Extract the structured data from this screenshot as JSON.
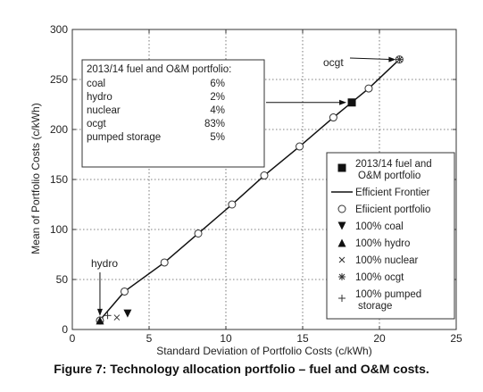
{
  "caption": "Figure 7: Technology allocation portfolio – fuel and O&M costs.",
  "chart_data": {
    "type": "scatter",
    "title": "",
    "xlabel": "Standard Deviation of Portfolio Costs (c/kWh)",
    "ylabel": "Mean of Portfolio Costs (c/kWh)",
    "xlim": [
      0,
      25
    ],
    "ylim": [
      0,
      300
    ],
    "xticks": [
      0,
      5,
      10,
      15,
      20,
      25
    ],
    "yticks": [
      0,
      50,
      100,
      150,
      200,
      250,
      300
    ],
    "grid": true,
    "legend_position": "bottom-right",
    "series": [
      {
        "name": "2013/14 fuel and O&M portfolio",
        "marker": "square",
        "x": [
          18.2
        ],
        "y": [
          227
        ]
      },
      {
        "name": "Efficient Frontier",
        "marker": "line",
        "x": [
          1.8,
          2.0,
          3.4,
          6.0,
          8.2,
          10.4,
          12.5,
          14.8,
          17.0,
          19.3,
          21.3
        ],
        "y": [
          9,
          13,
          38,
          67,
          96,
          125,
          154,
          183,
          212,
          241,
          270
        ]
      },
      {
        "name": "Efiicient portfolio",
        "marker": "circle-open",
        "x": [
          1.8,
          3.4,
          6.0,
          8.2,
          10.4,
          12.5,
          14.8,
          17.0,
          19.3,
          21.3
        ],
        "y": [
          9,
          38,
          67,
          96,
          125,
          154,
          183,
          212,
          241,
          270
        ]
      },
      {
        "name": "100% coal",
        "marker": "triangle-down",
        "x": [
          3.6
        ],
        "y": [
          16
        ]
      },
      {
        "name": "100% hydro",
        "marker": "triangle-up",
        "x": [
          1.8
        ],
        "y": [
          9
        ]
      },
      {
        "name": "100% nuclear",
        "marker": "x",
        "x": [
          2.9
        ],
        "y": [
          12
        ]
      },
      {
        "name": "100% ocgt",
        "marker": "star",
        "x": [
          21.3
        ],
        "y": [
          270
        ]
      },
      {
        "name": "100% pumped storage",
        "marker": "plus",
        "x": [
          2.3
        ],
        "y": [
          14
        ]
      }
    ],
    "legend": [
      {
        "line1": "2013/14 fuel and",
        "line2": "O&M portfolio",
        "marker": "square"
      },
      {
        "line1": "Efficient Frontier",
        "line2": "",
        "marker": "line"
      },
      {
        "line1": "Efiicient portfolio",
        "line2": "",
        "marker": "circle-open"
      },
      {
        "line1": "100% coal",
        "line2": "",
        "marker": "triangle-down"
      },
      {
        "line1": "100% hydro",
        "line2": "",
        "marker": "triangle-up"
      },
      {
        "line1": "100% nuclear",
        "line2": "",
        "marker": "x"
      },
      {
        "line1": "100% ocgt",
        "line2": "",
        "marker": "star"
      },
      {
        "line1": "100% pumped",
        "line2": "storage",
        "marker": "plus"
      }
    ],
    "annotations": {
      "ocgt_label": "ocgt",
      "hydro_label": "hydro",
      "portfolio_box_title": "2013/14 fuel and O&M portfolio:",
      "portfolio_box_rows": [
        {
          "name": "coal",
          "value": "6%"
        },
        {
          "name": "hydro",
          "value": "2%"
        },
        {
          "name": "nuclear",
          "value": "4%"
        },
        {
          "name": "ocgt",
          "value": "83%"
        },
        {
          "name": "pumped storage",
          "value": "5%"
        }
      ]
    }
  }
}
